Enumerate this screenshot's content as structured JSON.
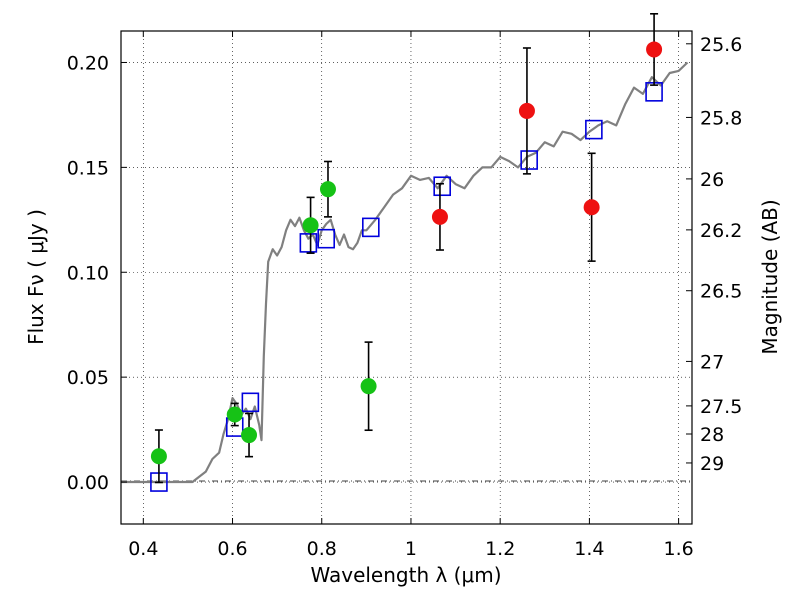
{
  "chart_data": {
    "type": "scatter",
    "title": "",
    "xlabel": "Wavelength  λ (μm)",
    "ylabel": "Flux  Fν  ( μJy )",
    "ylabel_right": "Magnitude (AB)",
    "xlim": [
      0.35,
      1.63
    ],
    "ylim": [
      -0.02,
      0.215
    ],
    "grid": true,
    "colors": {
      "model": "#808080",
      "green": "#16c216",
      "red": "#ee1111",
      "box": "#0000dd",
      "errorbar": "#000000"
    },
    "x_ticks": [
      {
        "value": 0.4,
        "label": "0.4"
      },
      {
        "value": 0.6,
        "label": "0.6"
      },
      {
        "value": 0.8,
        "label": "0.8"
      },
      {
        "value": 1.0,
        "label": "1"
      },
      {
        "value": 1.2,
        "label": "1.2"
      },
      {
        "value": 1.4,
        "label": "1.4"
      },
      {
        "value": 1.6,
        "label": "1.6"
      }
    ],
    "y_ticks": [
      {
        "value": 0.0,
        "label": "0.00"
      },
      {
        "value": 0.05,
        "label": "0.05"
      },
      {
        "value": 0.1,
        "label": "0.10"
      },
      {
        "value": 0.15,
        "label": "0.15"
      },
      {
        "value": 0.2,
        "label": "0.20"
      }
    ],
    "mag_ticks": [
      {
        "value": 0.2089,
        "label": "25.6"
      },
      {
        "value": 0.1738,
        "label": "25.8"
      },
      {
        "value": 0.1445,
        "label": "26"
      },
      {
        "value": 0.1202,
        "label": "26.2"
      },
      {
        "value": 0.0912,
        "label": "26.5"
      },
      {
        "value": 0.0575,
        "label": "27"
      },
      {
        "value": 0.0363,
        "label": "27.5"
      },
      {
        "value": 0.0229,
        "label": "28"
      },
      {
        "value": 0.0091,
        "label": "29"
      }
    ],
    "model_spectrum": {
      "name": "",
      "x": [
        0.35,
        0.51,
        0.54,
        0.555,
        0.57,
        0.58,
        0.59,
        0.6,
        0.61,
        0.62,
        0.63,
        0.64,
        0.65,
        0.66,
        0.665,
        0.67,
        0.675,
        0.68,
        0.69,
        0.7,
        0.71,
        0.72,
        0.73,
        0.74,
        0.75,
        0.76,
        0.77,
        0.78,
        0.79,
        0.8,
        0.81,
        0.82,
        0.83,
        0.84,
        0.85,
        0.86,
        0.87,
        0.88,
        0.89,
        0.9,
        0.92,
        0.94,
        0.96,
        0.98,
        1.0,
        1.02,
        1.04,
        1.06,
        1.08,
        1.1,
        1.12,
        1.14,
        1.16,
        1.18,
        1.2,
        1.22,
        1.24,
        1.26,
        1.28,
        1.3,
        1.32,
        1.34,
        1.36,
        1.38,
        1.4,
        1.42,
        1.44,
        1.46,
        1.48,
        1.5,
        1.52,
        1.54,
        1.56,
        1.58,
        1.6,
        1.62
      ],
      "y": [
        0.0,
        0.0,
        0.005,
        0.011,
        0.014,
        0.023,
        0.03,
        0.04,
        0.037,
        0.032,
        0.035,
        0.03,
        0.036,
        0.027,
        0.02,
        0.06,
        0.085,
        0.105,
        0.111,
        0.108,
        0.112,
        0.12,
        0.125,
        0.122,
        0.126,
        0.12,
        0.116,
        0.118,
        0.113,
        0.12,
        0.123,
        0.125,
        0.118,
        0.113,
        0.118,
        0.112,
        0.111,
        0.114,
        0.12,
        0.12,
        0.125,
        0.131,
        0.137,
        0.14,
        0.146,
        0.144,
        0.145,
        0.14,
        0.146,
        0.142,
        0.14,
        0.146,
        0.15,
        0.15,
        0.155,
        0.153,
        0.15,
        0.155,
        0.157,
        0.162,
        0.16,
        0.167,
        0.166,
        0.163,
        0.167,
        0.17,
        0.172,
        0.17,
        0.18,
        0.188,
        0.185,
        0.193,
        0.189,
        0.195,
        0.196,
        0.2
      ]
    },
    "series": [
      {
        "name": "",
        "marker": "circle",
        "color": "#16c216",
        "x": [
          0.435,
          0.605,
          0.637,
          0.775,
          0.814,
          0.905
        ],
        "y": [
          0.0123,
          0.0322,
          0.0224,
          0.1224,
          0.1396,
          0.0457
        ],
        "yerr": [
          0.0125,
          0.0053,
          0.0103,
          0.0133,
          0.0132,
          0.021
        ]
      },
      {
        "name": "",
        "marker": "circle",
        "color": "#ee1111",
        "x": [
          1.065,
          1.26,
          1.405,
          1.545
        ],
        "y": [
          0.1264,
          0.1769,
          0.131,
          0.2062
        ],
        "yerr": [
          0.0158,
          0.03,
          0.0257,
          0.017
        ]
      },
      {
        "name": "",
        "marker": "square",
        "color": "#0000dd",
        "x": [
          0.435,
          0.605,
          0.64,
          0.77,
          0.81,
          0.91,
          1.07,
          1.265,
          1.41,
          1.545
        ],
        "y": [
          0.0,
          0.0262,
          0.038,
          0.114,
          0.116,
          0.1214,
          0.141,
          0.1535,
          0.168,
          0.186
        ],
        "yerr": [
          0,
          0,
          0,
          0,
          0,
          0,
          0,
          0,
          0,
          0
        ]
      }
    ]
  }
}
